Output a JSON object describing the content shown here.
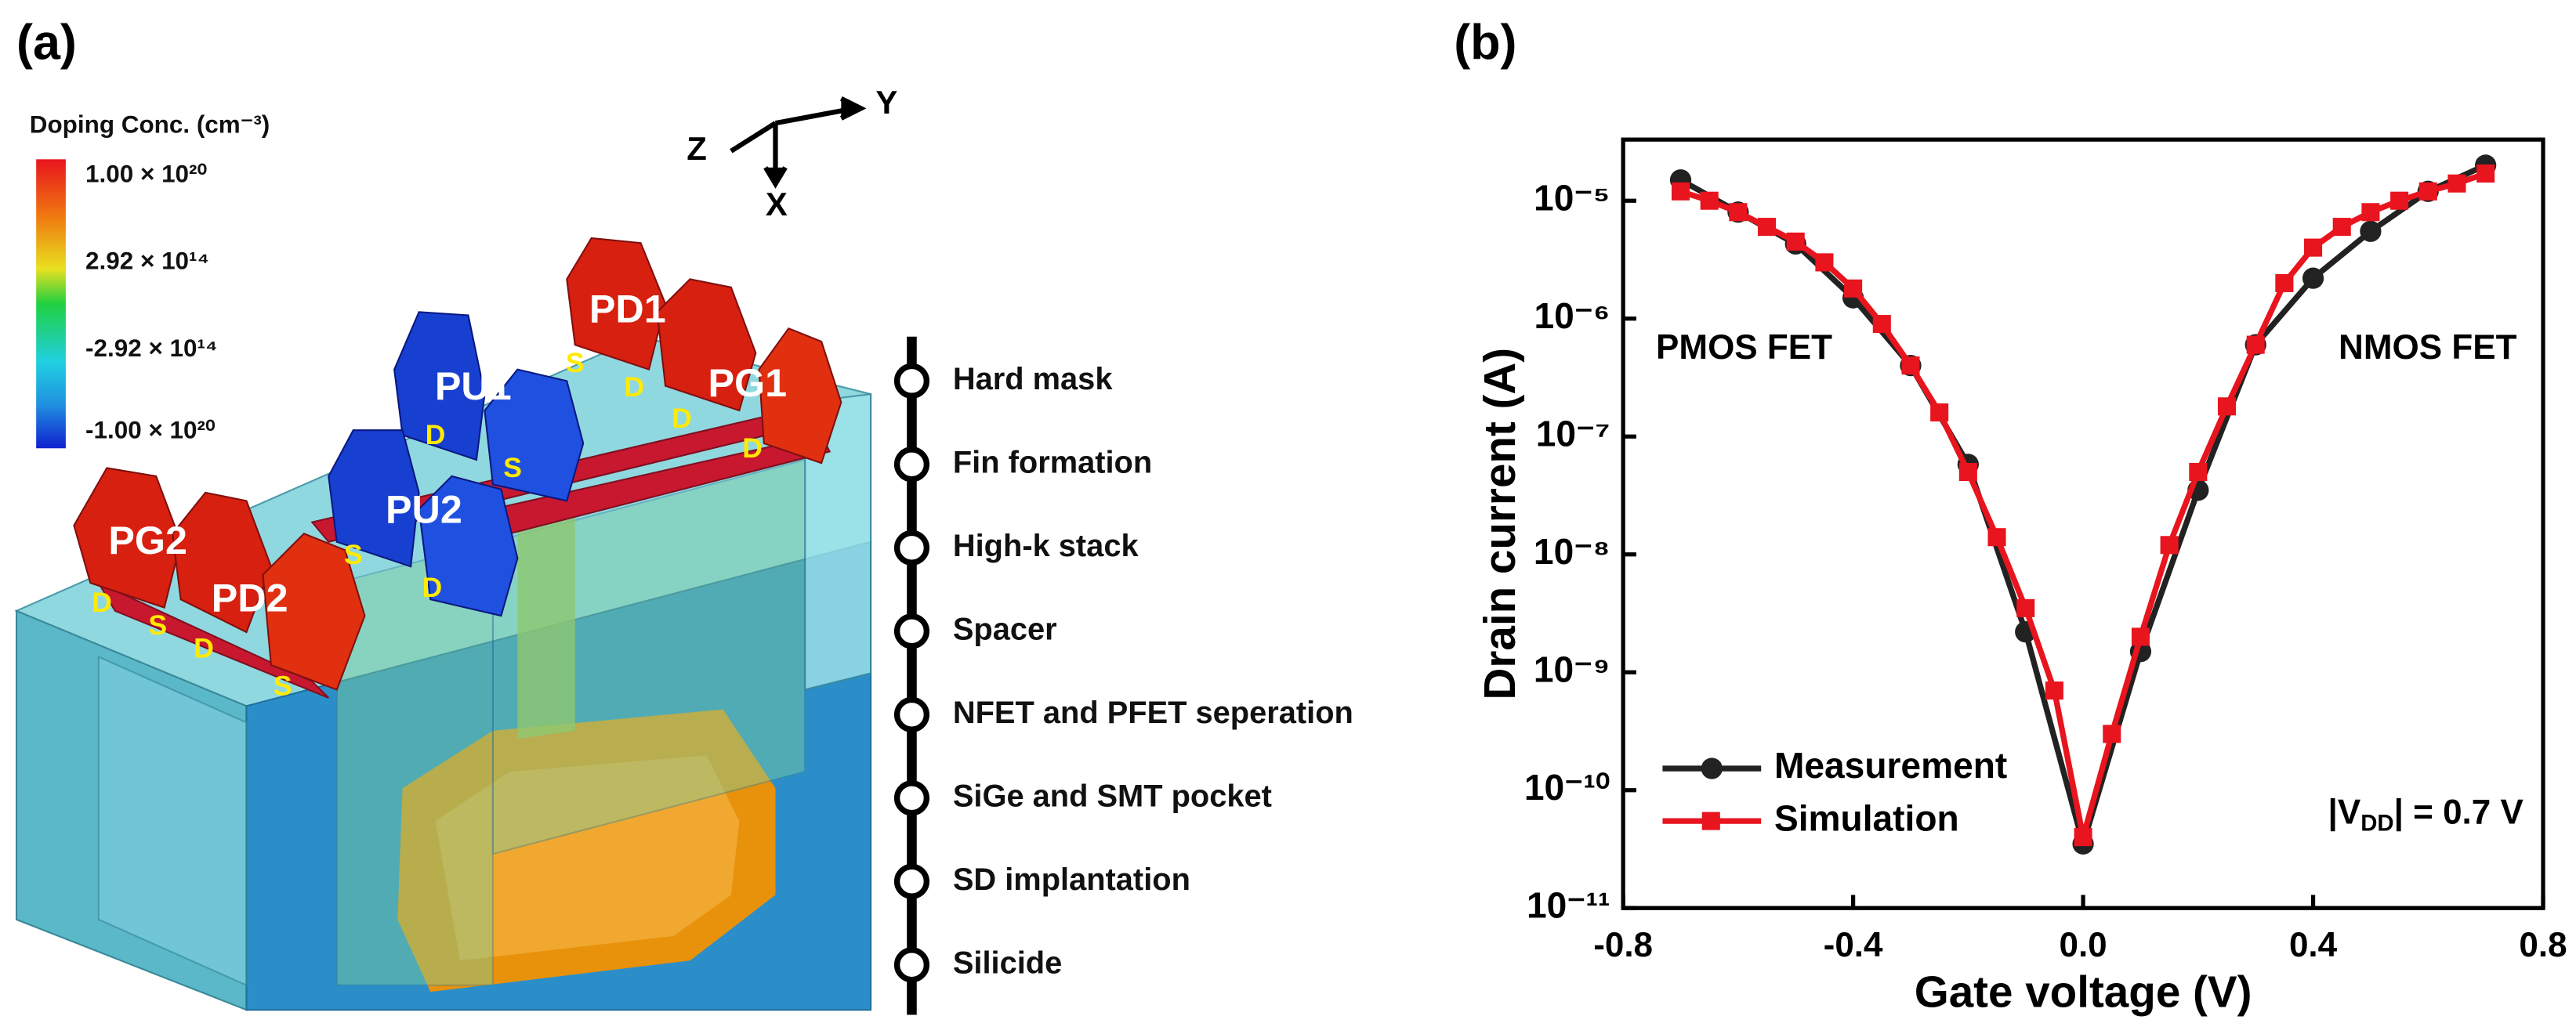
{
  "panel_a": {
    "label": "(a)",
    "colorbar_title": "Doping Conc. (cm⁻³)",
    "colorbar_labels": [
      "1.00 × 10²⁰",
      "2.92 × 10¹⁴",
      "-2.92 × 10¹⁴",
      "-1.00 × 10²⁰"
    ],
    "axes": [
      "Z",
      "Y",
      "X"
    ],
    "devices": [
      "PD1",
      "PG1",
      "PU1",
      "PU2",
      "PG2",
      "PD2"
    ],
    "terminals": [
      "S",
      "D",
      "D",
      "D",
      "D",
      "S",
      "S",
      "D",
      "D",
      "S",
      "D",
      "S"
    ],
    "process_steps": [
      "Hard mask",
      "Fin formation",
      "High-k stack",
      "Spacer",
      "NFET and PFET seperation",
      "SiGe and SMT pocket",
      "SD implantation",
      "Silicide"
    ]
  },
  "chart_data": {
    "type": "line",
    "label": "(b)",
    "x_label": "Gate voltage (V)",
    "y_label": "Drain current (A)",
    "log_y": true,
    "xlim": [
      -0.8,
      0.8
    ],
    "xticks": [
      -0.8,
      -0.4,
      {
        "value": 0,
        "label": "0.0"
      },
      0.4,
      0.8
    ],
    "ylim": [
      1e-11,
      3.3e-05
    ],
    "yticks": [
      {
        "value": 1e-11,
        "label": "10⁻¹¹"
      },
      {
        "value": 1e-10,
        "label": "10⁻¹⁰"
      },
      {
        "value": 1e-09,
        "label": "10⁻⁹"
      },
      {
        "value": 1e-08,
        "label": "10⁻⁸"
      },
      {
        "value": 1e-07,
        "label": "10⁻⁷"
      },
      {
        "value": 1e-06,
        "label": "10⁻⁶"
      },
      {
        "value": 1e-05,
        "label": "10⁻⁵"
      }
    ],
    "legend": "lower left",
    "annotations": [
      "PMOS FET",
      "NMOS FET"
    ],
    "vdd_note": {
      "prefix": "|V",
      "sub": "DD",
      "suffix": "| = 0.7 V"
    },
    "series": [
      {
        "name": "Measurement",
        "color": "#222222",
        "marker": "circle",
        "x": [
          -0.7,
          -0.6,
          -0.5,
          -0.4,
          -0.3,
          -0.2,
          -0.1,
          0,
          0.1,
          0.2,
          0.3,
          0.4,
          0.5,
          0.6,
          0.7
        ],
        "values": [
          1.5e-05,
          8e-06,
          4.3e-06,
          1.5e-06,
          4e-07,
          5.8e-08,
          2.2e-09,
          3.5e-11,
          1.5e-09,
          3.5e-08,
          6e-07,
          2.2e-06,
          5.5e-06,
          1.2e-05,
          2e-05
        ]
      },
      {
        "name": "Simulation",
        "color": "#e8141e",
        "marker": "square",
        "x": [
          -0.7,
          -0.65,
          -0.6,
          -0.55,
          -0.5,
          -0.45,
          -0.4,
          -0.35,
          -0.3,
          -0.25,
          -0.2,
          -0.15,
          -0.1,
          -0.05,
          0,
          0.05,
          0.1,
          0.15,
          0.2,
          0.25,
          0.3,
          0.35,
          0.4,
          0.45,
          0.5,
          0.55,
          0.6,
          0.65,
          0.7
        ],
        "values": [
          1.2e-05,
          1e-05,
          8e-06,
          6e-06,
          4.5e-06,
          3e-06,
          1.8e-06,
          9e-07,
          4e-07,
          1.6e-07,
          5e-08,
          1.4e-08,
          3.5e-09,
          7e-10,
          4e-11,
          3e-10,
          2e-09,
          1.2e-08,
          5e-08,
          1.8e-07,
          6e-07,
          2e-06,
          4e-06,
          6e-06,
          8e-06,
          1e-05,
          1.2e-05,
          1.4e-05,
          1.7e-05
        ]
      }
    ]
  }
}
